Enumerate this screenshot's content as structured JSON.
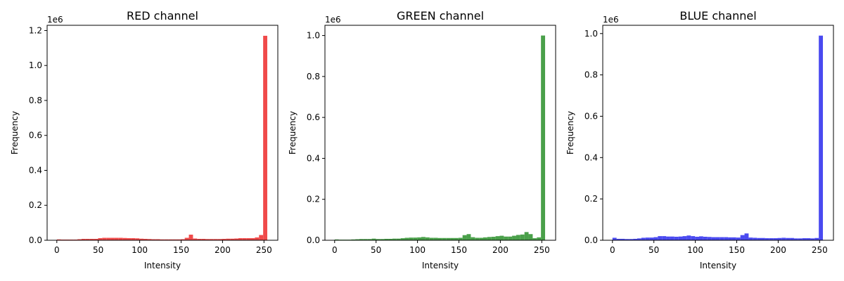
{
  "chart_data": [
    {
      "type": "bar",
      "title": "RED channel",
      "xlabel": "Intensity",
      "ylabel": "Frequency",
      "y_offset_label": "1e6",
      "color": "#f04a4a",
      "xlim": [
        -11.7,
        266.7
      ],
      "ylim": [
        0,
        1.23
      ],
      "xticks": [
        0,
        50,
        100,
        150,
        200,
        250
      ],
      "yticks": [
        0.0,
        0.2,
        0.4,
        0.6,
        0.8,
        1.0,
        1.2
      ],
      "xtick_labels": [
        "0",
        "50",
        "100",
        "150",
        "200",
        "250"
      ],
      "ytick_labels": [
        "0.0",
        "0.2",
        "0.4",
        "0.6",
        "0.8",
        "1.0",
        "1.2"
      ],
      "bin_width": 4.98,
      "bins_start": [
        0,
        4.98,
        9.96,
        14.94,
        19.92,
        24.9,
        29.88,
        34.86,
        39.84,
        44.82,
        49.8,
        54.78,
        59.76,
        64.74,
        69.72,
        74.7,
        79.68,
        84.66,
        89.64,
        94.62,
        99.6,
        104.58,
        109.56,
        114.54,
        119.52,
        124.5,
        129.48,
        134.46,
        139.44,
        144.42,
        149.4,
        154.38,
        159.36,
        164.34,
        169.32,
        174.3,
        179.28,
        184.26,
        189.24,
        194.22,
        199.2,
        204.18,
        209.16,
        214.14,
        219.12,
        224.1,
        229.08,
        234.06,
        239.04,
        244.02,
        249.0
      ],
      "values": [
        0.005,
        0.004,
        0.004,
        0.004,
        0.004,
        0.006,
        0.008,
        0.008,
        0.008,
        0.008,
        0.012,
        0.014,
        0.014,
        0.014,
        0.014,
        0.014,
        0.013,
        0.012,
        0.012,
        0.011,
        0.009,
        0.008,
        0.007,
        0.006,
        0.006,
        0.005,
        0.005,
        0.005,
        0.005,
        0.005,
        0.006,
        0.014,
        0.032,
        0.01,
        0.008,
        0.008,
        0.007,
        0.007,
        0.007,
        0.007,
        0.008,
        0.009,
        0.009,
        0.01,
        0.012,
        0.012,
        0.012,
        0.012,
        0.016,
        0.03,
        1.17
      ]
    },
    {
      "type": "bar",
      "title": "GREEN channel",
      "xlabel": "Intensity",
      "ylabel": "Frequency",
      "y_offset_label": "1e6",
      "color": "#4aa04a",
      "xlim": [
        -11.7,
        266.7
      ],
      "ylim": [
        0,
        1.05
      ],
      "xticks": [
        0,
        50,
        100,
        150,
        200,
        250
      ],
      "yticks": [
        0.0,
        0.2,
        0.4,
        0.6,
        0.8,
        1.0
      ],
      "xtick_labels": [
        "0",
        "50",
        "100",
        "150",
        "200",
        "250"
      ],
      "ytick_labels": [
        "0.0",
        "0.2",
        "0.4",
        "0.6",
        "0.8",
        "1.0"
      ],
      "bin_width": 4.98,
      "bins_start": [
        0,
        4.98,
        9.96,
        14.94,
        19.92,
        24.9,
        29.88,
        34.86,
        39.84,
        44.82,
        49.8,
        54.78,
        59.76,
        64.74,
        69.72,
        74.7,
        79.68,
        84.66,
        89.64,
        94.62,
        99.6,
        104.58,
        109.56,
        114.54,
        119.52,
        124.5,
        129.48,
        134.46,
        139.44,
        144.42,
        149.4,
        154.38,
        159.36,
        164.34,
        169.32,
        174.3,
        179.28,
        184.26,
        189.24,
        194.22,
        199.2,
        204.18,
        209.16,
        214.14,
        219.12,
        224.1,
        229.08,
        234.06,
        239.04,
        244.02,
        249.0
      ],
      "values": [
        0.004,
        0.003,
        0.003,
        0.003,
        0.004,
        0.005,
        0.006,
        0.006,
        0.006,
        0.008,
        0.006,
        0.006,
        0.007,
        0.007,
        0.008,
        0.008,
        0.01,
        0.012,
        0.013,
        0.013,
        0.014,
        0.016,
        0.014,
        0.012,
        0.012,
        0.011,
        0.011,
        0.011,
        0.011,
        0.011,
        0.012,
        0.025,
        0.03,
        0.015,
        0.012,
        0.012,
        0.014,
        0.016,
        0.017,
        0.02,
        0.022,
        0.018,
        0.018,
        0.022,
        0.026,
        0.028,
        0.04,
        0.03,
        0.01,
        0.014,
        1.0
      ]
    },
    {
      "type": "bar",
      "title": "BLUE channel",
      "xlabel": "Intensity",
      "ylabel": "Frequency",
      "y_offset_label": "1e6",
      "color": "#4a4af0",
      "xlim": [
        -11.7,
        266.7
      ],
      "ylim": [
        0,
        1.04
      ],
      "xticks": [
        0,
        50,
        100,
        150,
        200,
        250
      ],
      "yticks": [
        0.0,
        0.2,
        0.4,
        0.6,
        0.8,
        1.0
      ],
      "xtick_labels": [
        "0",
        "50",
        "100",
        "150",
        "200",
        "250"
      ],
      "ytick_labels": [
        "0.0",
        "0.2",
        "0.4",
        "0.6",
        "0.8",
        "1.0"
      ],
      "bin_width": 4.98,
      "bins_start": [
        0,
        4.98,
        9.96,
        14.94,
        19.92,
        24.9,
        29.88,
        34.86,
        39.84,
        44.82,
        49.8,
        54.78,
        59.76,
        64.74,
        69.72,
        74.7,
        79.68,
        84.66,
        89.64,
        94.62,
        99.6,
        104.58,
        109.56,
        114.54,
        119.52,
        124.5,
        129.48,
        134.46,
        139.44,
        144.42,
        149.4,
        154.38,
        159.36,
        164.34,
        169.32,
        174.3,
        179.28,
        184.26,
        189.24,
        194.22,
        199.2,
        204.18,
        209.16,
        214.14,
        219.12,
        224.1,
        229.08,
        234.06,
        239.04,
        244.02,
        249.0
      ],
      "values": [
        0.012,
        0.007,
        0.007,
        0.006,
        0.006,
        0.007,
        0.009,
        0.012,
        0.013,
        0.013,
        0.015,
        0.02,
        0.02,
        0.018,
        0.018,
        0.017,
        0.018,
        0.02,
        0.023,
        0.02,
        0.017,
        0.019,
        0.017,
        0.016,
        0.015,
        0.015,
        0.015,
        0.015,
        0.014,
        0.014,
        0.013,
        0.025,
        0.033,
        0.013,
        0.012,
        0.011,
        0.011,
        0.01,
        0.01,
        0.01,
        0.011,
        0.012,
        0.011,
        0.011,
        0.009,
        0.009,
        0.01,
        0.01,
        0.009,
        0.011,
        0.99
      ]
    }
  ]
}
